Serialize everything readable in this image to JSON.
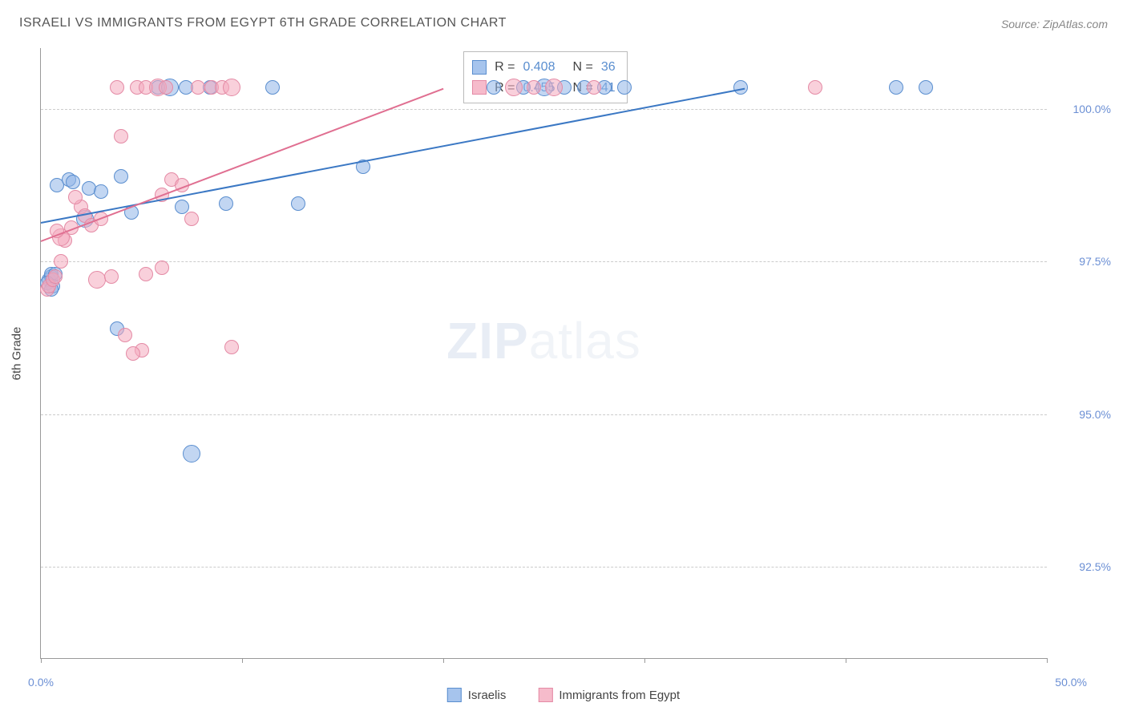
{
  "title": "ISRAELI VS IMMIGRANTS FROM EGYPT 6TH GRADE CORRELATION CHART",
  "source": "Source: ZipAtlas.com",
  "watermark": {
    "bold": "ZIP",
    "light": "atlas"
  },
  "y_axis_title": "6th Grade",
  "chart": {
    "type": "scatter",
    "xlim": [
      0,
      50
    ],
    "ylim": [
      91,
      101
    ],
    "x_ticks": [
      0,
      10,
      20,
      30,
      40,
      50
    ],
    "x_tick_labels": {
      "first": "0.0%",
      "last": "50.0%"
    },
    "y_ticks": [
      92.5,
      95.0,
      97.5,
      100.0
    ],
    "y_tick_labels": [
      "92.5%",
      "95.0%",
      "97.5%",
      "100.0%"
    ],
    "grid_color": "#cccccc",
    "axis_color": "#999999",
    "background_color": "#ffffff",
    "marker_radius": 9,
    "marker_radius_alt": 11,
    "series": [
      {
        "name": "Israelis",
        "color_fill": "rgba(144,181,232,0.55)",
        "color_stroke": "#5a8ecf",
        "swatch_class": "blue",
        "stats": {
          "R": "0.408",
          "N": "36"
        },
        "trend": {
          "x0": 0,
          "y0": 98.15,
          "x1": 35,
          "y1": 100.35,
          "color": "#3b78c4"
        },
        "points": [
          {
            "x": 0.4,
            "y": 97.2
          },
          {
            "x": 0.5,
            "y": 97.25
          },
          {
            "x": 0.5,
            "y": 97.3
          },
          {
            "x": 0.7,
            "y": 97.3
          },
          {
            "x": 0.6,
            "y": 97.1
          },
          {
            "x": 0.3,
            "y": 97.15
          },
          {
            "x": 0.5,
            "y": 97.05
          },
          {
            "x": 0.8,
            "y": 98.75
          },
          {
            "x": 1.4,
            "y": 98.85
          },
          {
            "x": 1.6,
            "y": 98.8
          },
          {
            "x": 2.4,
            "y": 98.7
          },
          {
            "x": 3.0,
            "y": 98.65
          },
          {
            "x": 4.0,
            "y": 98.9
          },
          {
            "x": 2.2,
            "y": 98.2
          },
          {
            "x": 4.5,
            "y": 98.3
          },
          {
            "x": 3.8,
            "y": 96.4
          },
          {
            "x": 7.5,
            "y": 94.35
          },
          {
            "x": 7.0,
            "y": 98.4
          },
          {
            "x": 9.2,
            "y": 98.45
          },
          {
            "x": 12.8,
            "y": 98.45
          },
          {
            "x": 5.8,
            "y": 100.35
          },
          {
            "x": 6.4,
            "y": 100.35
          },
          {
            "x": 7.2,
            "y": 100.35
          },
          {
            "x": 8.4,
            "y": 100.35
          },
          {
            "x": 11.5,
            "y": 100.35
          },
          {
            "x": 16.0,
            "y": 99.05
          },
          {
            "x": 22.5,
            "y": 100.35
          },
          {
            "x": 24.0,
            "y": 100.35
          },
          {
            "x": 25.0,
            "y": 100.35
          },
          {
            "x": 26.0,
            "y": 100.35
          },
          {
            "x": 27.0,
            "y": 100.35
          },
          {
            "x": 28.0,
            "y": 100.35
          },
          {
            "x": 29.0,
            "y": 100.35
          },
          {
            "x": 34.8,
            "y": 100.35
          },
          {
            "x": 42.5,
            "y": 100.35
          },
          {
            "x": 44.0,
            "y": 100.35
          }
        ]
      },
      {
        "name": "Immigrants from Egypt",
        "color_fill": "rgba(244,170,190,0.55)",
        "color_stroke": "#e48aa5",
        "swatch_class": "pink",
        "stats": {
          "R": "0.455",
          "N": "41"
        },
        "trend": {
          "x0": 0,
          "y0": 97.85,
          "x1": 20,
          "y1": 100.35,
          "color": "#e06f91"
        },
        "points": [
          {
            "x": 0.3,
            "y": 97.05
          },
          {
            "x": 0.4,
            "y": 97.1
          },
          {
            "x": 0.6,
            "y": 97.2
          },
          {
            "x": 0.7,
            "y": 97.25
          },
          {
            "x": 1.0,
            "y": 97.5
          },
          {
            "x": 1.2,
            "y": 97.85
          },
          {
            "x": 1.0,
            "y": 97.9
          },
          {
            "x": 0.8,
            "y": 98.0
          },
          {
            "x": 1.5,
            "y": 98.05
          },
          {
            "x": 2.0,
            "y": 98.4
          },
          {
            "x": 2.2,
            "y": 98.25
          },
          {
            "x": 1.7,
            "y": 98.55
          },
          {
            "x": 2.5,
            "y": 98.1
          },
          {
            "x": 3.0,
            "y": 98.2
          },
          {
            "x": 2.8,
            "y": 97.2
          },
          {
            "x": 3.5,
            "y": 97.25
          },
          {
            "x": 4.0,
            "y": 99.55
          },
          {
            "x": 3.8,
            "y": 100.35
          },
          {
            "x": 4.8,
            "y": 100.35
          },
          {
            "x": 5.2,
            "y": 100.35
          },
          {
            "x": 5.8,
            "y": 100.35
          },
          {
            "x": 6.2,
            "y": 100.35
          },
          {
            "x": 6.0,
            "y": 98.6
          },
          {
            "x": 6.5,
            "y": 98.85
          },
          {
            "x": 7.0,
            "y": 98.75
          },
          {
            "x": 7.5,
            "y": 98.2
          },
          {
            "x": 7.8,
            "y": 100.35
          },
          {
            "x": 8.5,
            "y": 100.35
          },
          {
            "x": 9.0,
            "y": 100.35
          },
          {
            "x": 9.5,
            "y": 100.35
          },
          {
            "x": 5.0,
            "y": 96.05
          },
          {
            "x": 5.2,
            "y": 97.3
          },
          {
            "x": 6.0,
            "y": 97.4
          },
          {
            "x": 9.5,
            "y": 96.1
          },
          {
            "x": 4.2,
            "y": 96.3
          },
          {
            "x": 4.6,
            "y": 96.0
          },
          {
            "x": 23.5,
            "y": 100.35
          },
          {
            "x": 24.5,
            "y": 100.35
          },
          {
            "x": 25.5,
            "y": 100.35
          },
          {
            "x": 27.5,
            "y": 100.35
          },
          {
            "x": 38.5,
            "y": 100.35
          }
        ]
      }
    ]
  },
  "legend": {
    "items": [
      {
        "label": "Israelis",
        "swatch": "blue"
      },
      {
        "label": "Immigrants from Egypt",
        "swatch": "pink"
      }
    ]
  },
  "stats_box": {
    "label_R": "R =",
    "label_N": "N ="
  }
}
